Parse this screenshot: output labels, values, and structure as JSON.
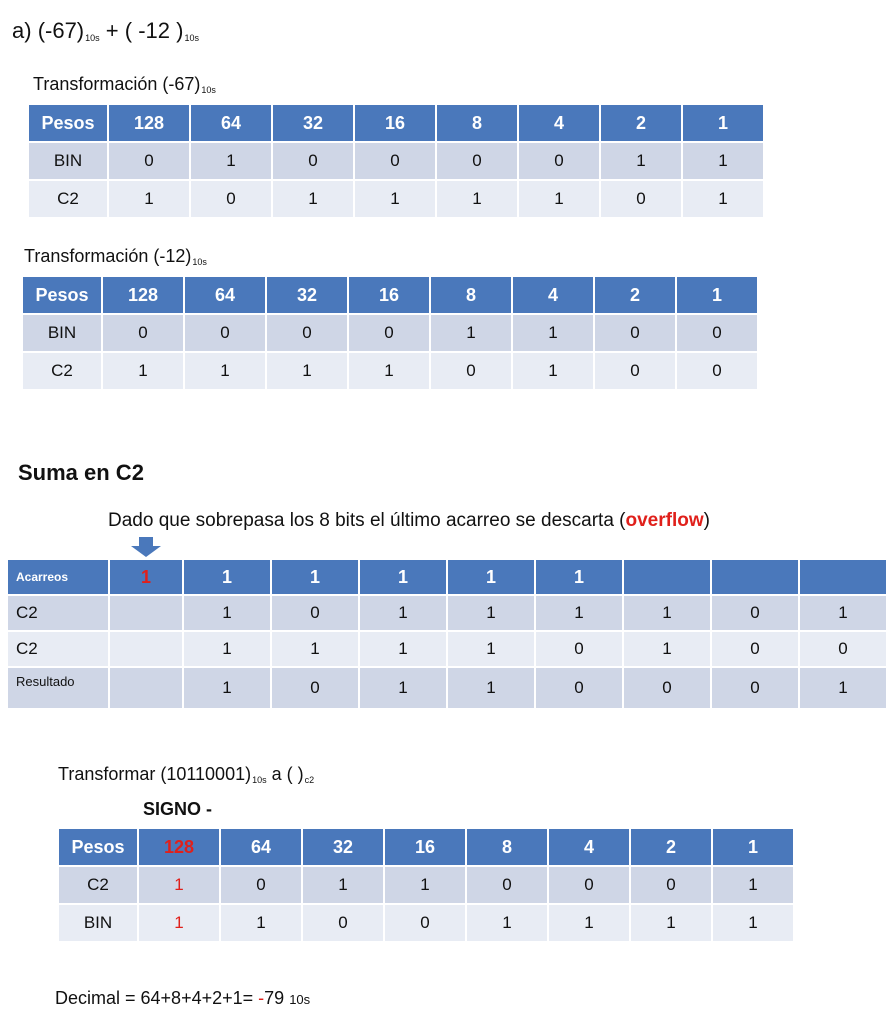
{
  "exercise": {
    "letter": "a)",
    "a": "(-67)",
    "a_sub": "10s",
    "plus": "+",
    "b": "( -12 )",
    "b_sub": "10s"
  },
  "transform1": {
    "title": "Transformación (-67)",
    "title_sub": "10s",
    "header": [
      "Pesos",
      "128",
      "64",
      "32",
      "16",
      "8",
      "4",
      "2",
      "1"
    ],
    "rows": [
      [
        "BIN",
        "0",
        "1",
        "0",
        "0",
        "0",
        "0",
        "1",
        "1"
      ],
      [
        "C2",
        "1",
        "0",
        "1",
        "1",
        "1",
        "1",
        "0",
        "1"
      ]
    ]
  },
  "transform2": {
    "title": "Transformación (-12)",
    "title_sub": "10s",
    "header": [
      "Pesos",
      "128",
      "64",
      "32",
      "16",
      "8",
      "4",
      "2",
      "1"
    ],
    "rows": [
      [
        "BIN",
        "0",
        "0",
        "0",
        "0",
        "1",
        "1",
        "0",
        "0"
      ],
      [
        "C2",
        "1",
        "1",
        "1",
        "1",
        "0",
        "1",
        "0",
        "0"
      ]
    ]
  },
  "suma": {
    "heading": "Suma en C2",
    "note_prefix": "Dado que sobrepasa los 8 bits el último acarreo se descarta (",
    "note_highlight": "overflow",
    "note_suffix": ")",
    "header": [
      "Acarreos",
      "1",
      "1",
      "1",
      "1",
      "1",
      "1",
      "",
      "",
      ""
    ],
    "rows": [
      [
        "C2",
        "",
        "1",
        "0",
        "1",
        "1",
        "1",
        "1",
        "0",
        "1"
      ],
      [
        "C2",
        "",
        "1",
        "1",
        "1",
        "1",
        "0",
        "1",
        "0",
        "0"
      ],
      [
        "Resultado",
        "",
        "1",
        "0",
        "1",
        "1",
        "0",
        "0",
        "0",
        "1"
      ]
    ]
  },
  "transform3": {
    "title_prefix": "Transformar (10110001)",
    "title_sub": "10s",
    "title_mid": " a (  )",
    "title_sub2": "c2",
    "signo": "SIGNO -",
    "header": [
      "Pesos",
      "128",
      "64",
      "32",
      "16",
      "8",
      "4",
      "2",
      "1"
    ],
    "rows": [
      [
        "C2",
        "1",
        "0",
        "1",
        "1",
        "0",
        "0",
        "0",
        "1"
      ],
      [
        "BIN",
        "1",
        "1",
        "0",
        "0",
        "1",
        "1",
        "1",
        "1"
      ]
    ]
  },
  "decimal": {
    "prefix": "Decimal = 64+8+4+2+1= ",
    "sign": "-",
    "value": "79",
    "unit": "10s"
  },
  "colors": {
    "header": "#4a78bb",
    "row_dark": "#cfd6e6",
    "row_light": "#e8ecf4",
    "accent": "#e0201b"
  }
}
